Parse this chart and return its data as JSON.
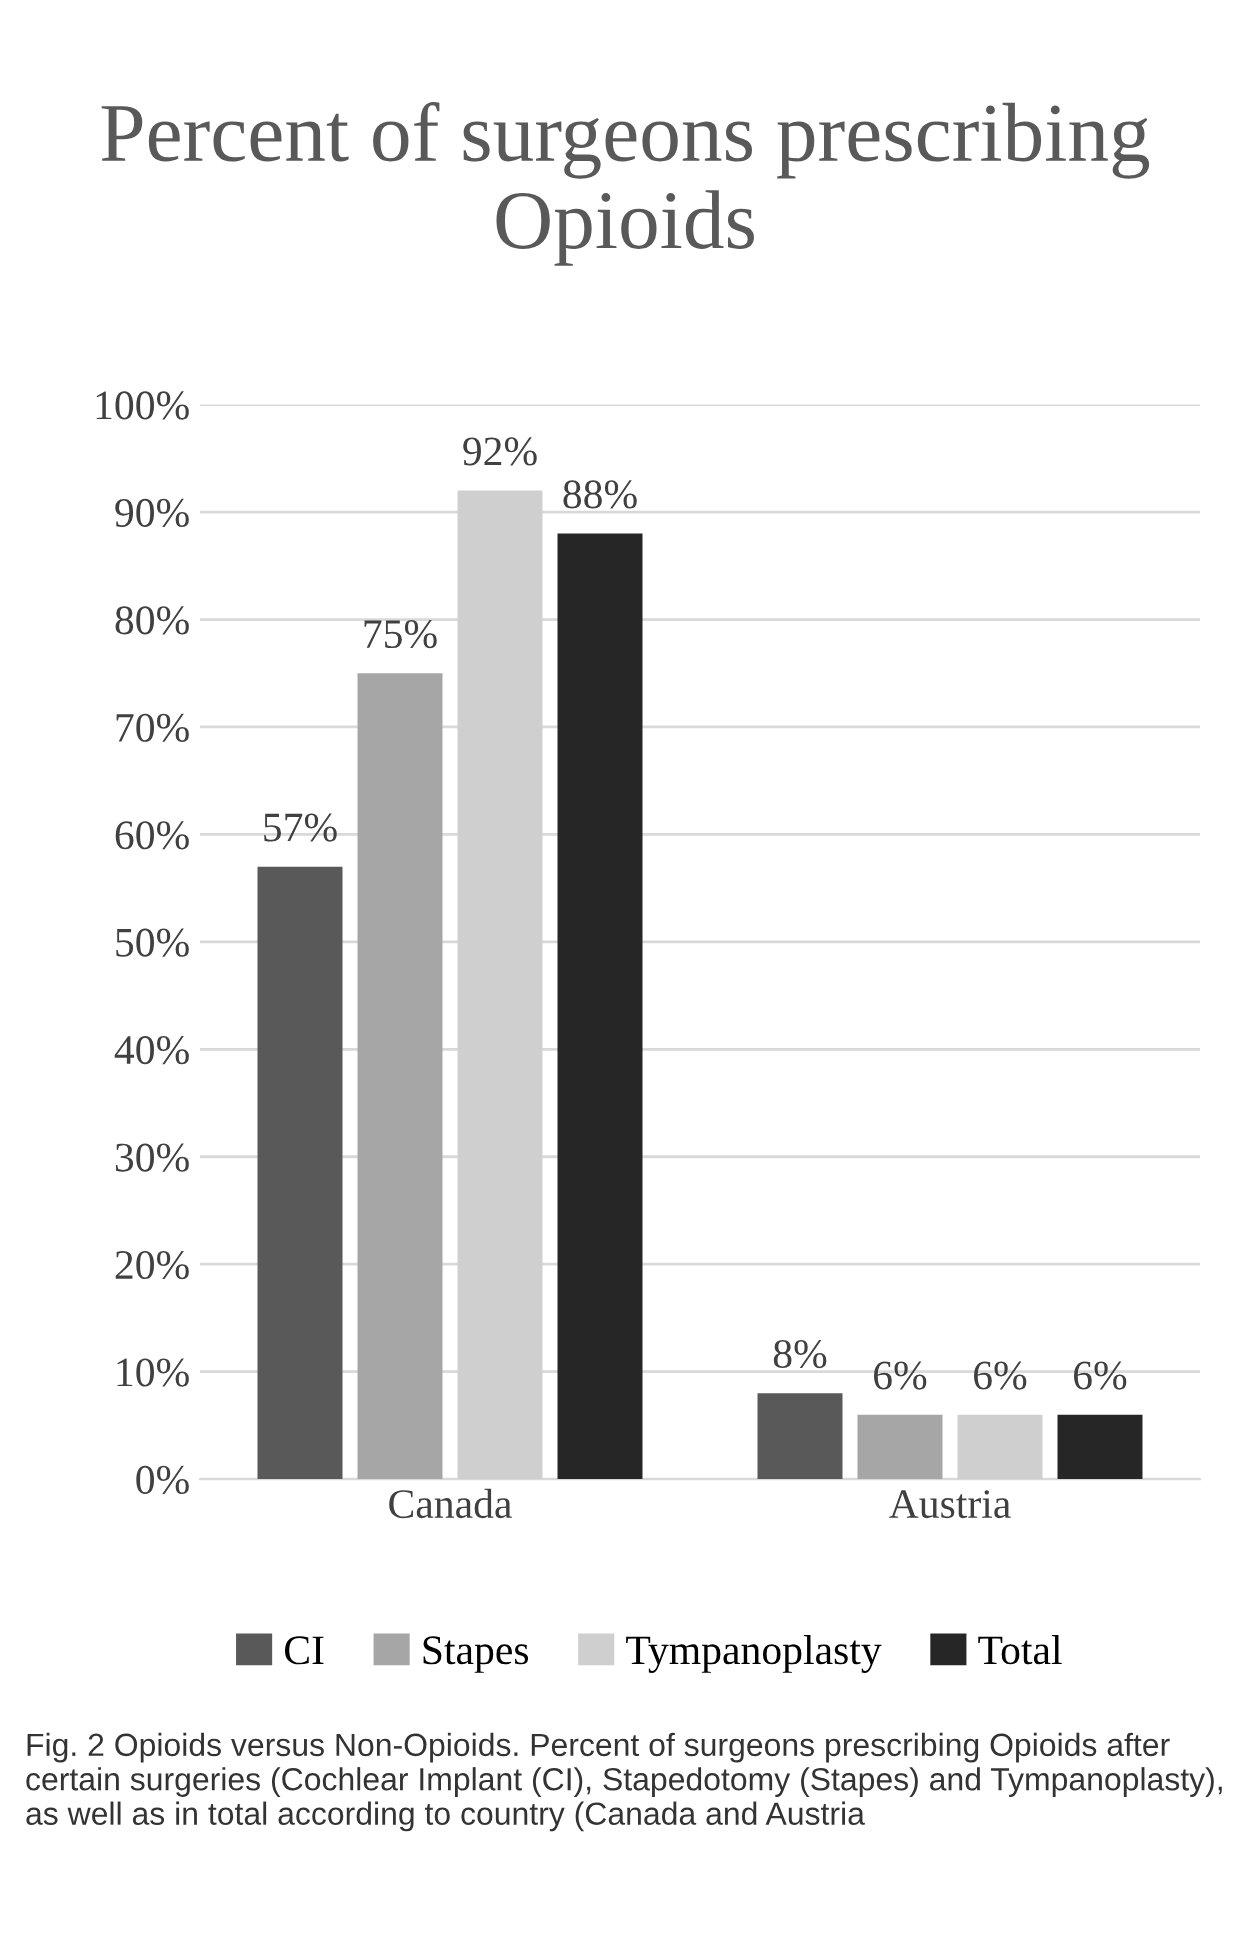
{
  "chart_data": {
    "type": "bar",
    "title": "Percent of surgeons prescribing Opioids",
    "categories": [
      "Canada",
      "Austria"
    ],
    "series": [
      {
        "name": "CI",
        "color": "#595959",
        "values": [
          57,
          8
        ],
        "value_labels": [
          "57%",
          "8%"
        ]
      },
      {
        "name": "Stapes",
        "color": "#a6a6a6",
        "values": [
          75,
          6
        ],
        "value_labels": [
          "75%",
          "6%"
        ]
      },
      {
        "name": "Tympanoplasty",
        "color": "#cfcfcf",
        "values": [
          92,
          6
        ],
        "value_labels": [
          "92%",
          "6%"
        ]
      },
      {
        "name": "Total",
        "color": "#262626",
        "values": [
          88,
          6
        ],
        "value_labels": [
          "88%",
          "6%"
        ]
      }
    ],
    "ylim": [
      0,
      100
    ],
    "yticks": [
      {
        "value": 0,
        "label": "0%"
      },
      {
        "value": 10,
        "label": "10%"
      },
      {
        "value": 20,
        "label": "20%"
      },
      {
        "value": 30,
        "label": "30%"
      },
      {
        "value": 40,
        "label": "40%"
      },
      {
        "value": 50,
        "label": "50%"
      },
      {
        "value": 60,
        "label": "60%"
      },
      {
        "value": 70,
        "label": "70%"
      },
      {
        "value": 80,
        "label": "80%"
      },
      {
        "value": 90,
        "label": "90%"
      },
      {
        "value": 100,
        "label": "100%"
      }
    ],
    "grid": "y",
    "legend": "bottom",
    "annotations": [
      "Fig. 2 Opioids versus Non-Opioids. Percent of surgeons prescribing Opioids after certain surgeries (Cochlear Implant (CI), Stapedotomy (Stapes) and Tympanoplasty), as well as in total according to country (Canada and Austria"
    ]
  }
}
